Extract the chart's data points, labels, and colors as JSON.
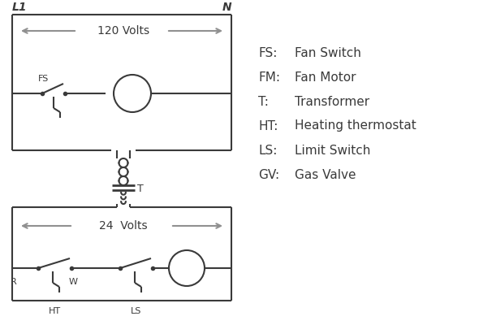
{
  "bg_color": "#ffffff",
  "line_color": "#3a3a3a",
  "arrow_color": "#909090",
  "legend_items": [
    [
      "FS:",
      "Fan Switch"
    ],
    [
      "FM:",
      "Fan Motor"
    ],
    [
      "T:",
      "Transformer"
    ],
    [
      "HT:",
      "Heating thermostat"
    ],
    [
      "LS:",
      "Limit Switch"
    ],
    [
      "GV:",
      "Gas Valve"
    ]
  ],
  "title_L1": "L1",
  "title_N": "N",
  "label_120V": "120 Volts",
  "label_24V": "24  Volts",
  "label_T": "T",
  "label_R": "R",
  "label_W": "W",
  "label_FS": "FS",
  "label_HT": "HT",
  "label_LS": "LS",
  "fig_width": 5.9,
  "fig_height": 4.0,
  "dpi": 100
}
